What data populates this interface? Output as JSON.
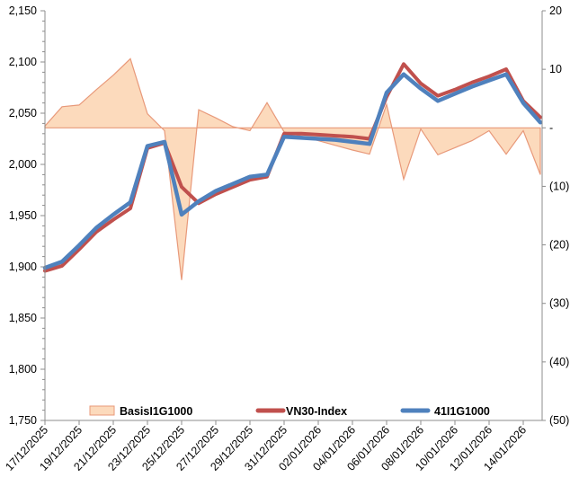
{
  "legend": {
    "items": [
      {
        "label": "BasisI1G1000",
        "swatch": "area"
      },
      {
        "label": "VN30-Index",
        "swatch": "line-red"
      },
      {
        "label": "41I1G1000",
        "swatch": "line-blue"
      }
    ]
  },
  "colors": {
    "area_fill": "#FCDABC",
    "area_stroke": "#E8997A",
    "vn30_line": "#C0504D",
    "futures_line": "#4F81BD",
    "axis": "#8C8C8C",
    "text": "#000000"
  },
  "left_axis": {
    "tick_labels": [
      "2,150",
      "2,100",
      "2,050",
      "2,000",
      "1,950",
      "1,900",
      "1,850",
      "1,800",
      "1,750"
    ],
    "min": 1750,
    "max": 2150,
    "major_unit": 50,
    "minor_unit": 10
  },
  "right_axis": {
    "tick_labels": [
      "20",
      "10",
      "-",
      "(10)",
      "(20)",
      "(30)",
      "(40)",
      "(50)"
    ],
    "min": -50,
    "max": 20,
    "major_unit": 10
  },
  "x_axis": {
    "visible_labels": [
      "17/12/2025",
      "19/12/2025",
      "21/12/2025",
      "23/12/2025",
      "25/12/2025",
      "27/12/2025",
      "29/12/2025",
      "31/12/2025",
      "02/01/2026",
      "04/01/2026",
      "06/01/2026",
      "08/01/2026",
      "10/01/2026",
      "12/01/2026",
      "14/01/2026"
    ]
  },
  "chart_data": {
    "type": "combo",
    "subtypes": [
      "area",
      "line",
      "line"
    ],
    "title": "",
    "xlabel": "",
    "ylabel_left": "",
    "ylabel_right": "",
    "x": [
      "17/12/2025",
      "18/12/2025",
      "19/12/2025",
      "20/12/2025",
      "21/12/2025",
      "22/12/2025",
      "23/12/2025",
      "24/12/2025",
      "25/12/2025",
      "26/12/2025",
      "27/12/2025",
      "28/12/2025",
      "29/12/2025",
      "30/12/2025",
      "31/12/2025",
      "01/01/2026",
      "02/01/2026",
      "03/01/2026",
      "04/01/2026",
      "05/01/2026",
      "06/01/2026",
      "07/01/2026",
      "08/01/2026",
      "09/01/2026",
      "10/01/2026",
      "11/01/2026",
      "12/01/2026",
      "13/01/2026",
      "14/01/2026",
      "15/01/2026"
    ],
    "x_tick_every": 2,
    "left_axis_range": [
      1750,
      2150
    ],
    "right_axis_range": [
      -50,
      20
    ],
    "legend_position": "bottom",
    "grid": false,
    "series": [
      {
        "name": "BasisI1G1000",
        "type": "area",
        "axis": "right",
        "values": [
          0.3,
          3.6,
          3.9,
          6.5,
          9.0,
          11.8,
          2.4,
          -0.5,
          -26.0,
          3.1,
          1.7,
          0.2,
          -0.5,
          4.3,
          -0.7,
          -1.4,
          -2.2,
          -3.0,
          -3.8,
          -4.5,
          4.0,
          -8.8,
          -0.2,
          -4.6,
          -3.4,
          -2.2,
          -0.5,
          -4.5,
          -0.5,
          -8.0
        ]
      },
      {
        "name": "VN30-Index",
        "type": "line",
        "axis": "left",
        "values": [
          1896,
          1901,
          1917,
          1934,
          1946,
          1957,
          2016,
          2021,
          1978,
          1962,
          1971,
          1978,
          1985,
          1988,
          2030,
          2030,
          2029,
          2028,
          2027,
          2025,
          2066,
          2098,
          2079,
          2067,
          2073,
          2080,
          2086,
          2093,
          2062,
          2046
        ]
      },
      {
        "name": "41I1G1000",
        "type": "line",
        "axis": "left",
        "values": [
          1899,
          1905,
          1921,
          1938,
          1951,
          1963,
          2018,
          2022,
          1951,
          1964,
          1974,
          1981,
          1988,
          1990,
          2027,
          2026,
          2025,
          2024,
          2022,
          2020,
          2070,
          2088,
          2074,
          2062,
          2069,
          2076,
          2082,
          2088,
          2060,
          2041
        ]
      }
    ]
  }
}
